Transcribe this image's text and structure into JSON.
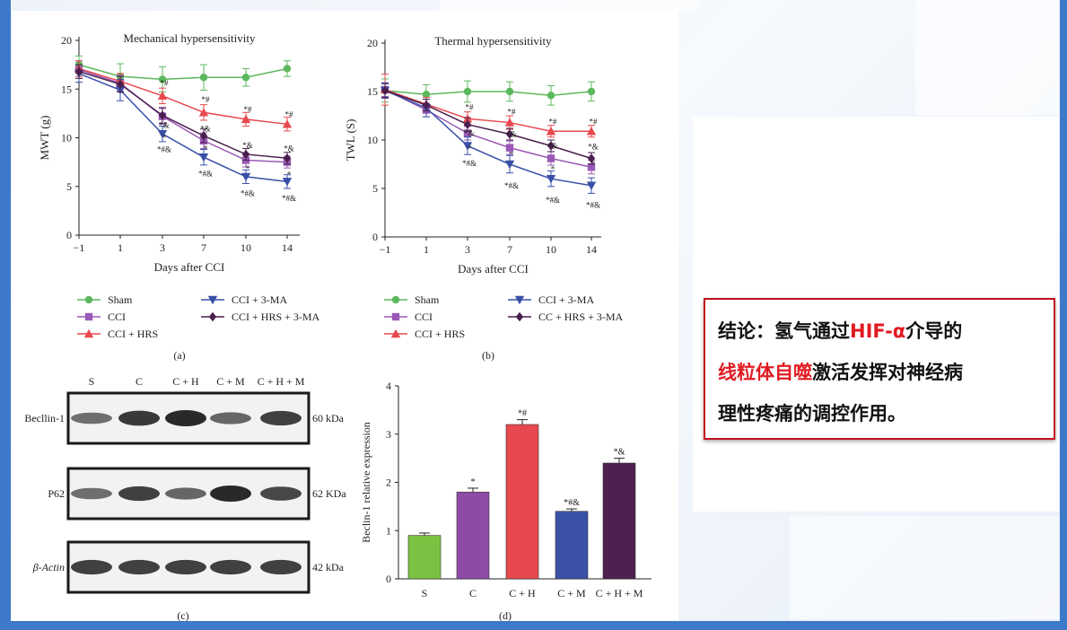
{
  "colors": {
    "sham": "#5cb85c",
    "cci": "#9b59b6",
    "hrs": "#e8494f",
    "ma": "#3950a8",
    "hrsma": "#4a1f4f",
    "bar_s": "#7cc242",
    "bar_c": "#8d4ba6",
    "bar_h": "#e8494f",
    "bar_m": "#3a51a5",
    "bar_hm": "#4d2050",
    "accent_red": "#e01b22",
    "frame_blue": "#3d79c9"
  },
  "chart_data": [
    {
      "type": "line",
      "panel_label": "(a)",
      "title": "Mechanical hypersensitivity",
      "xlabel": "Days after CCI",
      "ylabel": "MWT (g)",
      "x": [
        "-1",
        "1",
        "3",
        "7",
        "10",
        "14"
      ],
      "ylim": [
        0,
        20
      ],
      "yticks": [
        "0",
        "5",
        "10",
        "15",
        "20"
      ],
      "series": [
        {
          "name": "Sham",
          "values": [
            17.5,
            16.3,
            16.0,
            16.2,
            16.2,
            17.1
          ],
          "err": [
            0.9,
            1.3,
            1.3,
            1.3,
            0.9,
            0.8
          ]
        },
        {
          "name": "CCI",
          "values": [
            17.0,
            15.6,
            12.2,
            9.7,
            7.7,
            7.5
          ],
          "err": [
            0.9,
            0.8,
            0.8,
            0.8,
            0.7,
            0.6
          ]
        },
        {
          "name": "CCI + HRS",
          "values": [
            17.1,
            15.8,
            14.3,
            12.6,
            11.9,
            11.4
          ],
          "err": [
            0.8,
            0.8,
            0.8,
            0.8,
            0.7,
            0.7
          ]
        },
        {
          "name": "CCI + 3-MA",
          "values": [
            16.6,
            14.9,
            10.4,
            8.0,
            6.0,
            5.5
          ],
          "err": [
            0.9,
            1.1,
            0.8,
            0.8,
            0.7,
            0.7
          ]
        },
        {
          "name": "CCI + HRS + 3-MA",
          "values": [
            16.8,
            15.5,
            12.3,
            10.2,
            8.3,
            7.9
          ],
          "err": [
            0.7,
            0.8,
            0.8,
            0.7,
            0.6,
            0.6
          ]
        }
      ],
      "annotations": [
        {
          "x": "3",
          "y": 15.6,
          "text": "*#"
        },
        {
          "x": "3",
          "y": 11.3,
          "text": "*&"
        },
        {
          "x": "3",
          "y": 10.0,
          "text": "*"
        },
        {
          "x": "3",
          "y": 8.8,
          "text": "*#&"
        },
        {
          "x": "7",
          "y": 13.9,
          "text": "*#"
        },
        {
          "x": "7",
          "y": 10.9,
          "text": "*&"
        },
        {
          "x": "7",
          "y": 8.9,
          "text": "*"
        },
        {
          "x": "7",
          "y": 6.3,
          "text": "*#&"
        },
        {
          "x": "10",
          "y": 12.9,
          "text": "*#"
        },
        {
          "x": "10",
          "y": 9.2,
          "text": "*&"
        },
        {
          "x": "10",
          "y": 6.8,
          "text": "*"
        },
        {
          "x": "10",
          "y": 4.3,
          "text": "*#&"
        },
        {
          "x": "14",
          "y": 12.4,
          "text": "*#"
        },
        {
          "x": "14",
          "y": 8.9,
          "text": "*&"
        },
        {
          "x": "14",
          "y": 6.2,
          "text": "*"
        },
        {
          "x": "14",
          "y": 3.8,
          "text": "*#&"
        }
      ],
      "legend": "bottom",
      "grid": false
    },
    {
      "type": "line",
      "panel_label": "(b)",
      "title": "Thermal hypersensitivity",
      "xlabel": "Days after CCI",
      "ylabel": "TWL (S)",
      "x": [
        "-1",
        "1",
        "3",
        "7",
        "10",
        "14"
      ],
      "ylim": [
        0,
        20
      ],
      "yticks": [
        "0",
        "5",
        "10",
        "15",
        "20"
      ],
      "series": [
        {
          "name": "Sham",
          "values": [
            15.1,
            14.7,
            15.0,
            15.0,
            14.6,
            15.0
          ],
          "err": [
            1.2,
            1.0,
            1.1,
            1.0,
            1.0,
            1.0
          ]
        },
        {
          "name": "CCI",
          "values": [
            15.2,
            13.1,
            10.7,
            9.2,
            8.1,
            7.2
          ],
          "err": [
            0.7,
            0.7,
            0.7,
            0.7,
            0.7,
            0.7
          ]
        },
        {
          "name": "CCI + HRS",
          "values": [
            15.2,
            13.7,
            12.2,
            11.8,
            10.9,
            10.9
          ],
          "err": [
            1.6,
            0.7,
            0.7,
            0.7,
            0.6,
            0.6
          ]
        },
        {
          "name": "CCI + 3-MA",
          "values": [
            15.1,
            13.3,
            9.4,
            7.5,
            6.0,
            5.3
          ],
          "err": [
            0.8,
            0.9,
            0.9,
            0.9,
            0.8,
            0.8
          ]
        },
        {
          "name": "CC + HRS + 3-MA",
          "values": [
            15.1,
            13.6,
            11.6,
            10.6,
            9.4,
            8.1
          ],
          "err": [
            0.7,
            0.6,
            0.7,
            0.6,
            0.6,
            0.6
          ]
        }
      ],
      "annotations": [
        {
          "x": "3",
          "y": 13.4,
          "text": "*#"
        },
        {
          "x": "3",
          "y": 10.7,
          "text": "*&"
        },
        {
          "x": "3",
          "y": 9.1,
          "text": "*"
        },
        {
          "x": "3",
          "y": 7.6,
          "text": "*#&"
        },
        {
          "x": "7",
          "y": 12.9,
          "text": "*#"
        },
        {
          "x": "7",
          "y": 10.6,
          "text": "*&"
        },
        {
          "x": "7",
          "y": 8.5,
          "text": "*"
        },
        {
          "x": "7",
          "y": 5.3,
          "text": "*#&"
        },
        {
          "x": "10",
          "y": 11.9,
          "text": "*#"
        },
        {
          "x": "10",
          "y": 9.4,
          "text": "*&"
        },
        {
          "x": "10",
          "y": 7.0,
          "text": "*"
        },
        {
          "x": "10",
          "y": 3.8,
          "text": "*#&"
        },
        {
          "x": "14",
          "y": 11.9,
          "text": "*#"
        },
        {
          "x": "14",
          "y": 9.3,
          "text": "*&"
        },
        {
          "x": "14",
          "y": 7.5,
          "text": "*"
        },
        {
          "x": "14",
          "y": 3.3,
          "text": "*#&"
        }
      ],
      "legend": "bottom",
      "grid": false
    },
    {
      "type": "bar",
      "panel_label": "(d)",
      "title": "",
      "xlabel": "",
      "ylabel": "Beclin-1 relative expression",
      "categories": [
        "S",
        "C",
        "C + H",
        "C + M",
        "C + H + M"
      ],
      "values": [
        0.9,
        1.8,
        3.2,
        1.4,
        2.4
      ],
      "err": [
        0.05,
        0.08,
        0.1,
        0.05,
        0.1
      ],
      "labels": [
        "",
        "*",
        "*#",
        "*#&",
        "*&"
      ],
      "ylim": [
        0,
        4
      ],
      "yticks": [
        "0",
        "1",
        "2",
        "3",
        "4"
      ],
      "grid": false
    }
  ],
  "blot": {
    "panel_label": "(c)",
    "lanes": [
      "S",
      "C",
      "C + H",
      "C + M",
      "C + H + M"
    ],
    "rows": [
      {
        "name": "Becllin-1",
        "kda": "60 kDa",
        "intensity": [
          0.55,
          0.9,
          1.0,
          0.6,
          0.85
        ]
      },
      {
        "name": "P62",
        "kda": "62 KDa",
        "intensity": [
          0.55,
          0.85,
          0.6,
          1.0,
          0.8
        ]
      },
      {
        "name": "β-Actin",
        "kda": "42 kDa",
        "intensity": [
          0.85,
          0.85,
          0.85,
          0.85,
          0.85
        ]
      }
    ]
  },
  "conclusion": {
    "line1_prefix": "结论：氢气通过",
    "line1_hl": "HIF-α",
    "line1_suffix": "介导的",
    "line2_hl": "线粒体自噬",
    "line2_suffix": "激活发挥对神经病",
    "line3": "理性疼痛的调控作用。"
  }
}
